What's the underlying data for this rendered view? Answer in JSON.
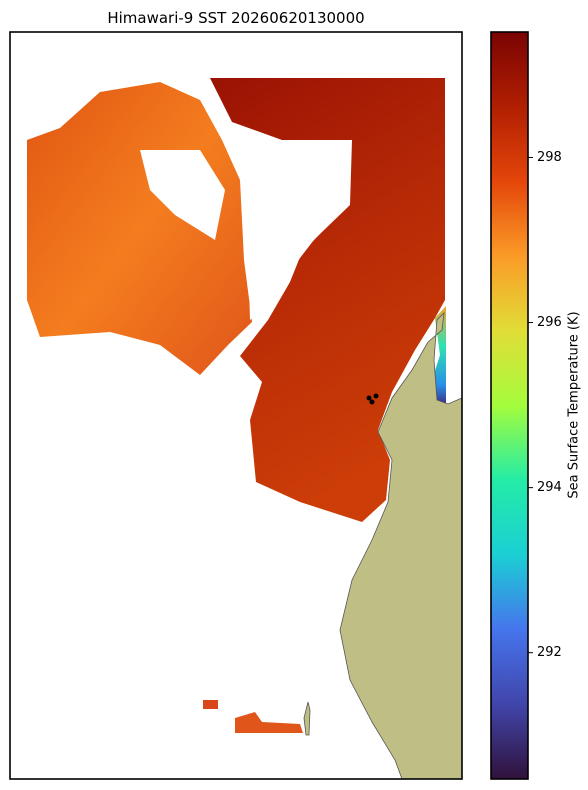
{
  "map": {
    "title": "Himawari-9 SST 20260620130000",
    "colorbar": {
      "label": "Sea Surface Temperature (K)",
      "lim": [
        290.47,
        299.52
      ],
      "ticks": [
        292,
        294,
        296,
        298
      ]
    }
  }
}
